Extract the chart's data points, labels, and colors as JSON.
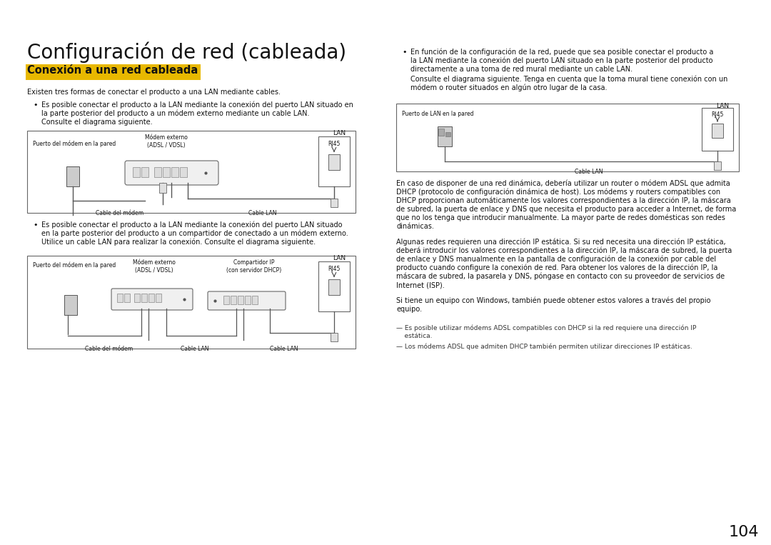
{
  "bg_color": "#ffffff",
  "title": "Configuración de red (cableada)",
  "subtitle": "Conexión a una red cableada",
  "subtitle_bg": "#e8b800",
  "subtitle_color": "#111111",
  "page_number": "104",
  "body_text_size": 7.0,
  "title_size": 20,
  "subtitle_size": 10.5,
  "paragraph1": "Existen tres formas de conectar el producto a una LAN mediante cables.",
  "bullet1_left_line1": "Es posible conectar el producto a la LAN mediante la conexión del puerto LAN situado en",
  "bullet1_left_line2": "la parte posterior del producto a un módem externo mediante un cable LAN.",
  "bullet1_left_line3": "Consulte el diagrama siguiente.",
  "bullet2_left_line1": "Es posible conectar el producto a la LAN mediante la conexión del puerto LAN situado",
  "bullet2_left_line2": "en la parte posterior del producto a un compartidor de conectado a un módem externo.",
  "bullet2_left_line3": "Utilice un cable LAN para realizar la conexión. Consulte el diagrama siguiente.",
  "bullet1_right_line1": "En función de la configuración de la red, puede que sea posible conectar el producto a",
  "bullet1_right_line2": "la LAN mediante la conexión del puerto LAN situado en la parte posterior del producto",
  "bullet1_right_line3": "directamente a una toma de red mural mediante un cable LAN.",
  "bullet1_right_line4": "Consulte el diagrama siguiente. Tenga en cuenta que la toma mural tiene conexión con un",
  "bullet1_right_line5": "módem o router situados en algún otro lugar de la casa.",
  "para_right1_lines": [
    "En caso de disponer de una red dinámica, debería utilizar un router o módem ADSL que admita",
    "DHCP (protocolo de configuración dinámica de host). Los módems y routers compatibles con",
    "DHCP proporcionan automáticamente los valores correspondientes a la dirección IP, la máscara",
    "de subred, la puerta de enlace y DNS que necesita el producto para acceder a Internet, de forma",
    "que no los tenga que introducir manualmente. La mayor parte de redes domésticas son redes",
    "dinámicas."
  ],
  "para_right2_lines": [
    "Algunas redes requieren una dirección IP estática. Si su red necesita una dirección IP estática,",
    "deberá introducir los valores correspondientes a la dirección IP, la máscara de subred, la puerta",
    "de enlace y DNS manualmente en la pantalla de configuración de la conexión por cable del",
    "producto cuando configure la conexión de red. Para obtener los valores de la dirección IP, la",
    "máscara de subred, la pasarela y DNS, póngase en contacto con su proveedor de servicios de",
    "Internet (ISP)."
  ],
  "para_right3_lines": [
    "Si tiene un equipo con Windows, también puede obtener estos valores a través del propio",
    "equipo."
  ],
  "footnote1": "— Es posible utilizar módems ADSL compatibles con DHCP si la red requiere una dirección IP",
  "footnote1b": "    estática.",
  "footnote2": "— Los módems ADSL que admiten DHCP también permiten utilizar direcciones IP estáticas."
}
